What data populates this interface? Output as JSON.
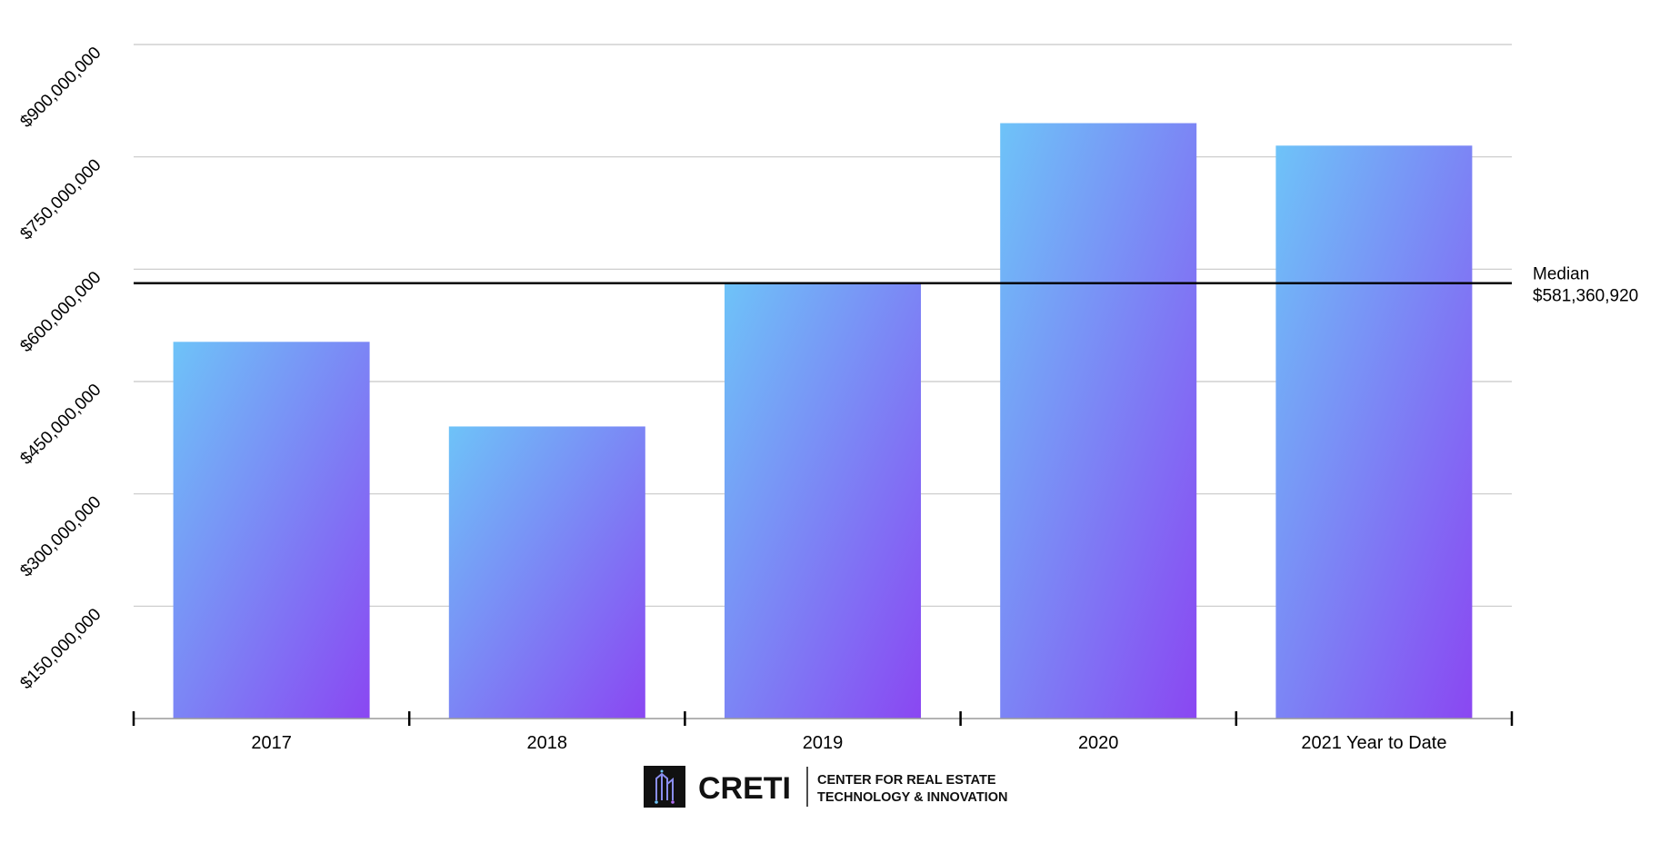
{
  "chart_data": {
    "type": "bar",
    "categories": [
      "2017",
      "2018",
      "2019",
      "2020",
      "2021 Year to Date"
    ],
    "values": [
      503000000,
      390000000,
      581360920,
      795000000,
      765000000
    ],
    "ylim": [
      0,
      900000000
    ],
    "yticks": [
      150000000,
      300000000,
      450000000,
      600000000,
      750000000,
      900000000
    ],
    "ytick_labels": [
      "$150,000,000",
      "$300,000,000",
      "$450,000,000",
      "$600,000,000",
      "$750,000,000",
      "$900,000,000"
    ],
    "grid": true,
    "median": {
      "value": 581360920,
      "label": "Median",
      "value_label": "$581,360,920"
    },
    "colors": {
      "bar_top": "#6ec3f8",
      "bar_bottom": "#8a47f2",
      "median_line": "#000000",
      "grid": "#c8c8c8"
    }
  },
  "logo": {
    "wordmark": "CRETI",
    "subtitle_line1": "CENTER FOR REAL ESTATE",
    "subtitle_line2": "TECHNOLOGY & INNOVATION"
  }
}
